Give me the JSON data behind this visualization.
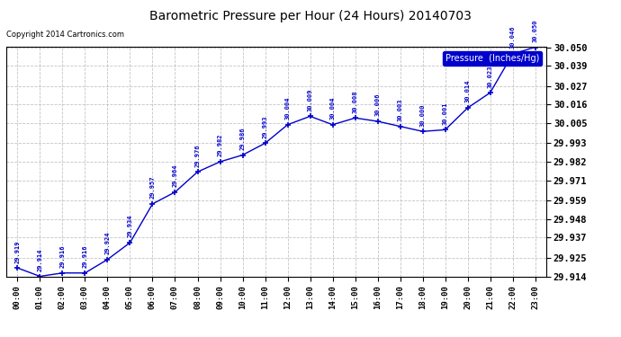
{
  "title": "Barometric Pressure per Hour (24 Hours) 20140703",
  "copyright": "Copyright 2014 Cartronics.com",
  "legend_label": "Pressure  (Inches/Hg)",
  "hours": [
    "00:00",
    "01:00",
    "02:00",
    "03:00",
    "04:00",
    "05:00",
    "06:00",
    "07:00",
    "08:00",
    "09:00",
    "10:00",
    "11:00",
    "12:00",
    "13:00",
    "14:00",
    "15:00",
    "16:00",
    "17:00",
    "18:00",
    "19:00",
    "20:00",
    "21:00",
    "22:00",
    "23:00"
  ],
  "values": [
    29.919,
    29.914,
    29.916,
    29.916,
    29.924,
    29.934,
    29.957,
    29.964,
    29.976,
    29.982,
    29.986,
    29.993,
    30.004,
    30.009,
    30.004,
    30.008,
    30.006,
    30.003,
    30.0,
    30.001,
    30.014,
    30.023,
    30.046,
    30.05
  ],
  "ylim_min": 29.914,
  "ylim_max": 30.05,
  "yticks": [
    29.914,
    29.925,
    29.937,
    29.948,
    29.959,
    29.971,
    29.982,
    29.993,
    30.005,
    30.016,
    30.027,
    30.039,
    30.05
  ],
  "line_color": "#0000cc",
  "marker_color": "#0000cc",
  "bg_color": "#ffffff",
  "plot_bg_color": "#ffffff",
  "grid_color": "#aaaaaa",
  "title_color": "#000000",
  "label_color": "#0000cc",
  "legend_bg": "#0000cc",
  "legend_text": "#ffffff"
}
